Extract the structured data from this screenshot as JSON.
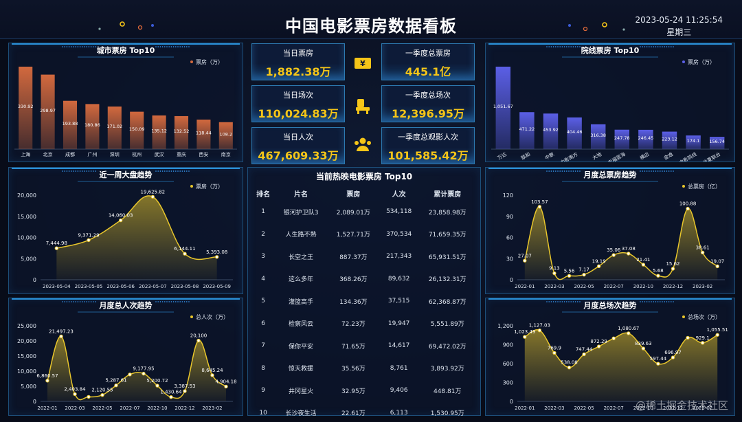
{
  "header": {
    "title": "中国电影票房数据看板",
    "datetime": "2023-05-24 11:25:54",
    "weekday": "星期三"
  },
  "kpis": [
    {
      "label": "当日票房",
      "value": "1,882.38万"
    },
    {
      "label": "一季度总票房",
      "value": "445.1亿"
    },
    {
      "label": "当日场次",
      "value": "110,024.83万"
    },
    {
      "label": "一季度总场次",
      "value": "12,396.95万"
    },
    {
      "label": "当日人次",
      "value": "467,609.33万"
    },
    {
      "label": "一季度总观影人次",
      "value": "101,585.42万"
    }
  ],
  "table": {
    "title": "当前热映电影票房 Top10",
    "headers": [
      "排名",
      "片名",
      "票房",
      "人次",
      "累计票房"
    ],
    "rows": [
      [
        "1",
        "银河护卫队3",
        "2,089.01万",
        "534,118",
        "23,858.98万"
      ],
      [
        "2",
        "人生路不熟",
        "1,527.71万",
        "370,534",
        "71,659.35万"
      ],
      [
        "3",
        "长空之王",
        "887.37万",
        "217,343",
        "65,931.51万"
      ],
      [
        "4",
        "这么多年",
        "368.26万",
        "89,632",
        "26,132.31万"
      ],
      [
        "5",
        "灌篮高手",
        "134.36万",
        "37,515",
        "62,368.87万"
      ],
      [
        "6",
        "检察风云",
        "72.23万",
        "19,947",
        "5,551.89万"
      ],
      [
        "7",
        "保你平安",
        "71.65万",
        "14,617",
        "69,472.02万"
      ],
      [
        "8",
        "惊天救援",
        "35.56万",
        "8,761",
        "3,893.92万"
      ],
      [
        "9",
        "井冈星火",
        "32.95万",
        "9,406",
        "448.81万"
      ],
      [
        "10",
        "长沙夜生活",
        "22.61万",
        "6,113",
        "1,530.95万"
      ]
    ]
  },
  "watermark": "@稀土掘金技术社区",
  "chart_data": [
    {
      "type": "bar",
      "title": "城市票房 Top10",
      "categories": [
        "上海",
        "北京",
        "成都",
        "广州",
        "深圳",
        "杭州",
        "武汉",
        "重庆",
        "西安",
        "南京"
      ],
      "series": [
        {
          "name": "票房（万）",
          "color": "#d2693e",
          "values": [
            330.92,
            298.97,
            193.88,
            180.86,
            171.02,
            150.09,
            135.12,
            132.52,
            118.44,
            108.2
          ]
        }
      ]
    },
    {
      "type": "bar",
      "title": "院线票房 Top10",
      "categories": [
        "万达",
        "联和",
        "中数",
        "中影南方",
        "大地",
        "幸福蓝海",
        "横店",
        "金逸",
        "中影电影院线",
        "华夏联合"
      ],
      "series": [
        {
          "name": "票房（万）",
          "color": "#5b5fe6",
          "values": [
            1051.67,
            471.22,
            453.92,
            404.46,
            316.38,
            247.78,
            246.45,
            223.12,
            174.1,
            156.74
          ],
          "value_labels": [
            "1,051.67",
            "471.22",
            "453.92",
            "404.46",
            "316.38",
            "247.78",
            "246.45",
            "223.12",
            "174.1",
            "156.74"
          ]
        }
      ]
    },
    {
      "type": "line",
      "title": "近一周大盘趋势",
      "categories": [
        "2023-05-04",
        "2023-05-05",
        "2023-05-06",
        "2023-05-07",
        "2023-05-08",
        "2023-05-09"
      ],
      "series": [
        {
          "name": "票房（万）",
          "color": "#e8c62c",
          "values": [
            7444.98,
            9371.29,
            14060.03,
            19625.82,
            6144.11,
            5393.08
          ],
          "value_labels": [
            "7,444.98",
            "9,371.29",
            "14,060.03",
            "19,625.82",
            "6,144.11",
            "5,393.08"
          ]
        }
      ],
      "ylim": [
        0,
        20000
      ],
      "yticks": [
        0,
        {
          "value": 5000,
          "label": "5,000"
        },
        {
          "value": 10000,
          "label": "10,000"
        },
        {
          "value": 15000,
          "label": "15,000"
        },
        {
          "value": 20000,
          "label": "20,000"
        }
      ]
    },
    {
      "type": "line",
      "title": "月度总人次趋势",
      "categories": [
        "2022-01",
        null,
        "2022-03",
        null,
        "2022-05",
        null,
        "2022-07",
        null,
        "2022-10",
        null,
        "2022-12",
        null,
        "2023-02",
        null
      ],
      "series": [
        {
          "name": "总人次（万）",
          "color": "#e8c62c",
          "values": [
            6860.57,
            21497.23,
            2403.84,
            1500,
            2120.55,
            5287.61,
            8900,
            9177.95,
            5200.72,
            1430.64,
            3387.53,
            20100,
            8645.24,
            4904.18
          ],
          "value_labels": [
            "6,860.57",
            "21,497.23",
            "2,403.84",
            null,
            "2,120.55",
            "5,287.61",
            null,
            "9,177.95",
            "5,200.72",
            "1,430.64",
            "3,387.53",
            "20,100",
            "8,645.24",
            "4,904.18"
          ]
        }
      ],
      "ylim": [
        0,
        25000
      ],
      "yticks": [
        0,
        {
          "value": 5000,
          "label": "5,000"
        },
        {
          "value": 10000,
          "label": "10,000"
        },
        {
          "value": 15000,
          "label": "15,000"
        },
        {
          "value": 20000,
          "label": "20,000"
        },
        {
          "value": 25000,
          "label": "25,000"
        }
      ]
    },
    {
      "type": "line",
      "title": "月度总票房趋势",
      "categories": [
        "2022-01",
        null,
        "2022-03",
        null,
        "2022-05",
        null,
        "2022-07",
        null,
        "2022-10",
        null,
        "2022-12",
        null,
        "2023-02",
        null
      ],
      "series": [
        {
          "name": "总票房（亿）",
          "color": "#e8c62c",
          "values": [
            27.07,
            103.57,
            9.13,
            5.56,
            7.17,
            19.19,
            35.06,
            37.08,
            21.41,
            5.68,
            15.62,
            100.88,
            38.61,
            19.07
          ]
        }
      ],
      "ylim": [
        0,
        120
      ],
      "yticks": [
        0,
        30,
        60,
        90,
        120
      ]
    },
    {
      "type": "line",
      "title": "月度总场次趋势",
      "categories": [
        "2022-01",
        null,
        "2022-03",
        null,
        "2022-05",
        null,
        "2022-07",
        null,
        "2022-10",
        null,
        "2022-12",
        null,
        "2023-02",
        null
      ],
      "series": [
        {
          "name": "总场次（万）",
          "color": "#e8c62c",
          "values": [
            1023.49,
            1127.03,
            769.9,
            538.08,
            747.44,
            872.29,
            1000,
            1080.67,
            839.63,
            597.44,
            696.97,
            1010,
            929.1,
            1055.51
          ],
          "value_labels": [
            "1,023.49",
            "1,127.03",
            "769.9",
            "538.08",
            "747.44",
            "872.29",
            null,
            "1,080.67",
            "839.63",
            "597.44",
            "696.97",
            null,
            "929.1",
            "1,055.51"
          ]
        }
      ],
      "ylim": [
        0,
        1200
      ],
      "yticks": [
        0,
        300,
        600,
        900,
        {
          "value": 1200,
          "label": "1,200"
        }
      ]
    }
  ]
}
